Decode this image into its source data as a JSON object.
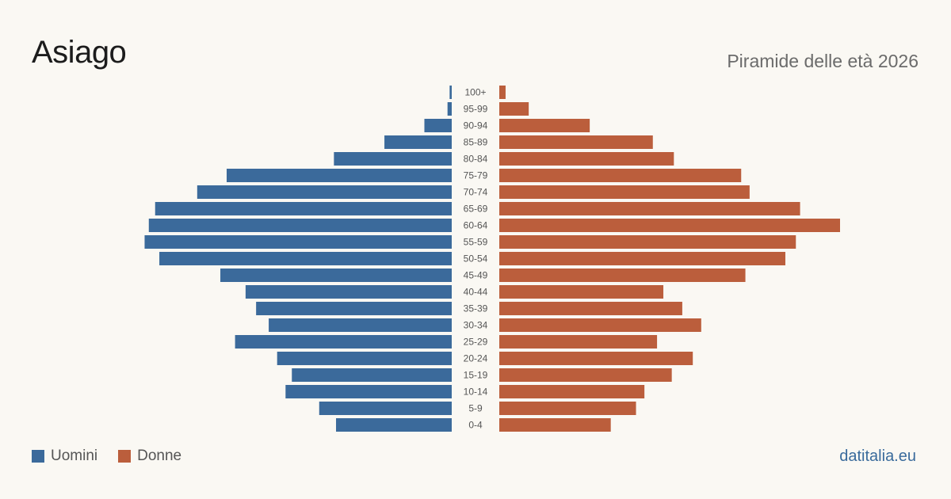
{
  "header": {
    "title": "Asiago",
    "subtitle": "Piramide delle età 2026"
  },
  "legend": {
    "men_label": "Uomini",
    "women_label": "Donne"
  },
  "source": "datitalia.eu",
  "colors": {
    "men": "#3b6a9b",
    "women": "#bb5e3c",
    "tick_label": "#555555"
  },
  "chart_data": {
    "type": "bar",
    "orientation": "horizontal-pyramid",
    "categories": [
      "100+",
      "95-99",
      "90-94",
      "85-89",
      "80-84",
      "75-79",
      "70-74",
      "65-69",
      "60-64",
      "55-59",
      "50-54",
      "45-49",
      "40-44",
      "35-39",
      "30-34",
      "25-29",
      "20-24",
      "15-19",
      "10-14",
      "5-9",
      "0-4"
    ],
    "series": [
      {
        "name": "Uomini",
        "values": [
          1,
          2,
          13,
          32,
          56,
          107,
          121,
          141,
          144,
          146,
          139,
          110,
          98,
          93,
          87,
          103,
          83,
          76,
          79,
          63,
          55
        ]
      },
      {
        "name": "Donne",
        "values": [
          3,
          14,
          43,
          73,
          83,
          115,
          119,
          143,
          162,
          141,
          136,
          117,
          78,
          87,
          96,
          75,
          92,
          82,
          69,
          65,
          53
        ]
      }
    ],
    "xlim": [
      0,
      162
    ]
  }
}
